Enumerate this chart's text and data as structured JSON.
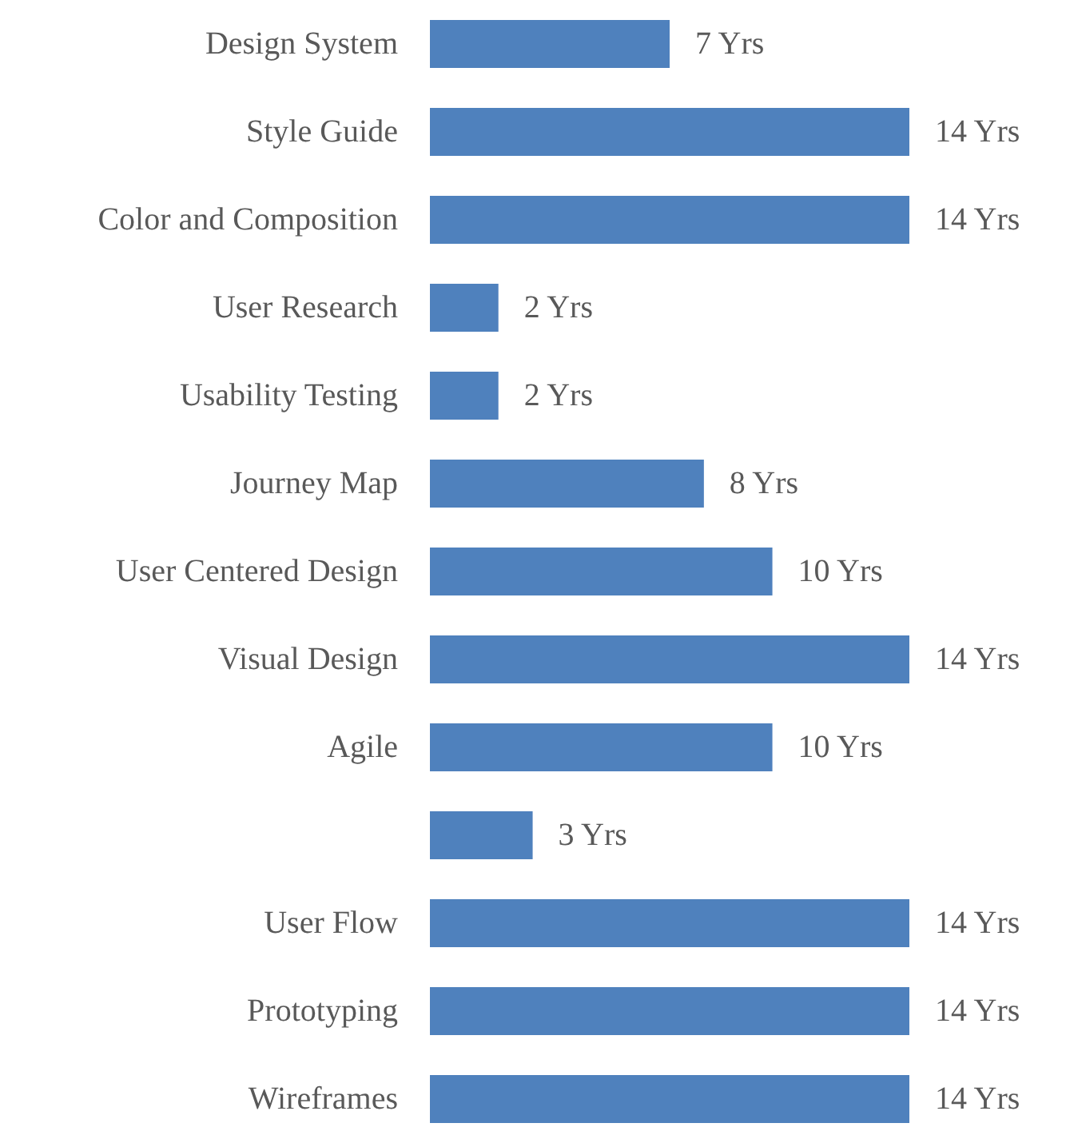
{
  "chart_data": {
    "type": "bar",
    "orientation": "horizontal",
    "categories": [
      "Design System",
      "Style Guide",
      "Color and Composition",
      "User Research",
      "Usability Testing",
      "Journey Map",
      "User Centered Design",
      "Visual Design",
      "Agile",
      null,
      "User Flow",
      "Prototyping",
      "Wireframes"
    ],
    "values": [
      7,
      14,
      14,
      2,
      2,
      8,
      10,
      14,
      10,
      3,
      14,
      14,
      14
    ],
    "value_labels": [
      "7 Yrs",
      "14 Yrs",
      "14 Yrs",
      "2 Yrs",
      "2 Yrs",
      "8 Yrs",
      "10 Yrs",
      "14 Yrs",
      "10 Yrs",
      "3 Yrs",
      "14 Yrs",
      "14 Yrs",
      "14 Yrs"
    ],
    "color": "#4f81bd",
    "grid": false
  }
}
